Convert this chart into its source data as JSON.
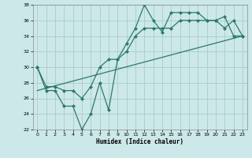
{
  "title": "",
  "xlabel": "Humidex (Indice chaleur)",
  "ylabel": "",
  "bg_color": "#cce8e8",
  "grid_color": "#aacccc",
  "line_color": "#2d7a6a",
  "ylim": [
    22,
    38
  ],
  "xlim": [
    -0.5,
    23.5
  ],
  "yticks": [
    22,
    24,
    26,
    28,
    30,
    32,
    34,
    36,
    38
  ],
  "xticks": [
    0,
    1,
    2,
    3,
    4,
    5,
    6,
    7,
    8,
    9,
    10,
    11,
    12,
    13,
    14,
    15,
    16,
    17,
    18,
    19,
    20,
    21,
    22,
    23
  ],
  "line1_x": [
    0,
    1,
    2,
    3,
    4,
    5,
    6,
    7,
    8,
    9,
    10,
    11,
    12,
    13,
    14,
    15,
    16,
    17,
    18,
    19,
    20,
    21,
    22,
    23
  ],
  "line1_y": [
    30,
    27,
    27,
    25,
    25,
    22,
    24,
    28,
    24.5,
    31,
    33,
    35,
    38,
    36,
    34.5,
    37,
    37,
    37,
    37,
    36,
    36,
    35,
    36,
    34
  ],
  "line2_x": [
    0,
    1,
    2,
    3,
    4,
    5,
    6,
    7,
    8,
    9,
    10,
    11,
    12,
    13,
    14,
    15,
    16,
    17,
    18,
    19,
    20,
    21,
    22,
    23
  ],
  "line2_y": [
    30,
    27.5,
    27.5,
    27,
    27,
    26,
    27.5,
    30,
    31,
    31,
    32,
    34,
    35,
    35,
    35,
    35,
    36,
    36,
    36,
    36,
    36,
    36.5,
    34,
    34
  ],
  "line3_x": [
    0,
    23
  ],
  "line3_y": [
    27,
    34
  ]
}
